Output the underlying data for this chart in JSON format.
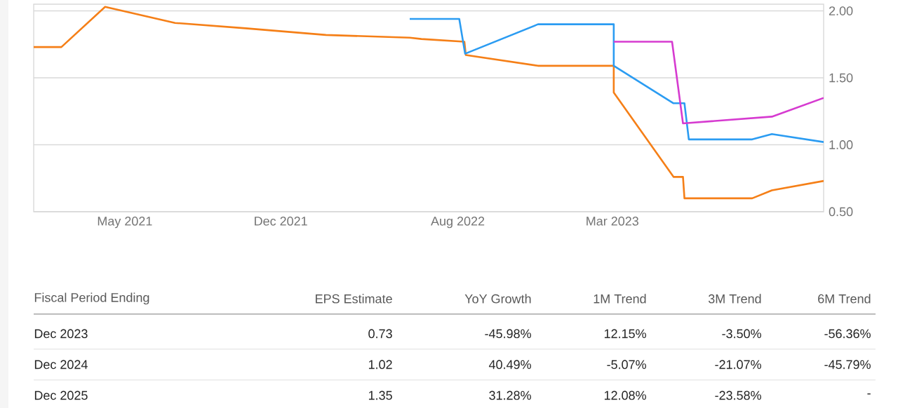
{
  "chart_data": {
    "type": "line",
    "series": [
      {
        "color": "#f57f17",
        "x": [
          "2020-12-27",
          "2021-02-03",
          "2021-04-04",
          "2021-07-09",
          "2021-10-14",
          "2022-02-01",
          "2022-05-27",
          "2022-06-12",
          "2022-08-10",
          "2022-08-12",
          "2022-11-19",
          "2023-03-03",
          "2023-03-03",
          "2023-05-24",
          "2023-06-06",
          "2023-06-08",
          "2023-09-09",
          "2023-10-06",
          "2023-12-16"
        ],
        "values": [
          1.73,
          1.73,
          2.03,
          1.91,
          1.87,
          1.82,
          1.8,
          1.79,
          1.77,
          1.67,
          1.59,
          1.59,
          1.39,
          0.76,
          0.76,
          0.6,
          0.6,
          0.66,
          0.73
        ]
      },
      {
        "color": "#2b9cf2",
        "x": [
          "2022-05-27",
          "2022-08-03",
          "2022-08-11",
          "2022-11-19",
          "2023-03-03",
          "2023-03-03",
          "2023-05-24",
          "2023-06-08",
          "2023-06-14",
          "2023-09-09",
          "2023-10-06",
          "2023-12-16"
        ],
        "values": [
          1.94,
          1.94,
          1.68,
          1.9,
          1.9,
          1.59,
          1.31,
          1.31,
          1.04,
          1.04,
          1.08,
          1.02
        ]
      },
      {
        "color": "#d63bd0",
        "x": [
          "2023-03-03",
          "2023-05-22",
          "2023-06-06",
          "2023-10-06",
          "2023-12-16"
        ],
        "values": [
          1.77,
          1.77,
          1.16,
          1.21,
          1.35
        ]
      }
    ],
    "xlim": [
      "2020-12-27",
      "2023-12-16"
    ],
    "xticks": [
      {
        "value": "2021-05-01",
        "label": "May 2021"
      },
      {
        "value": "2021-12-01",
        "label": "Dec 2021"
      },
      {
        "value": "2022-08-01",
        "label": "Aug 2022"
      },
      {
        "value": "2023-03-01",
        "label": "Mar 2023"
      }
    ],
    "ylim": [
      0.5,
      2.05
    ],
    "yticks": [
      {
        "value": 0.5,
        "label": "0.50"
      },
      {
        "value": 1.0,
        "label": "1.00"
      },
      {
        "value": 1.5,
        "label": "1.50"
      },
      {
        "value": 2.0,
        "label": "2.00"
      }
    ],
    "grid": "y",
    "marker": "none",
    "line_style": "solid",
    "annotations": [
      "Fiscal Period Ending",
      "EPS Estimate",
      "YoY Growth",
      "1M Trend",
      "3M Trend",
      "6M Trend",
      "Dec 2023",
      "0.73",
      "-45.98%",
      "12.15%",
      "-3.50%",
      "-56.36%",
      "Dec 2024",
      "1.02",
      "40.49%",
      "-5.07%",
      "-21.07%",
      "-45.79%",
      "Dec 2025",
      "1.35",
      "31.28%",
      "12.08%",
      "-23.58%",
      "-"
    ]
  }
}
